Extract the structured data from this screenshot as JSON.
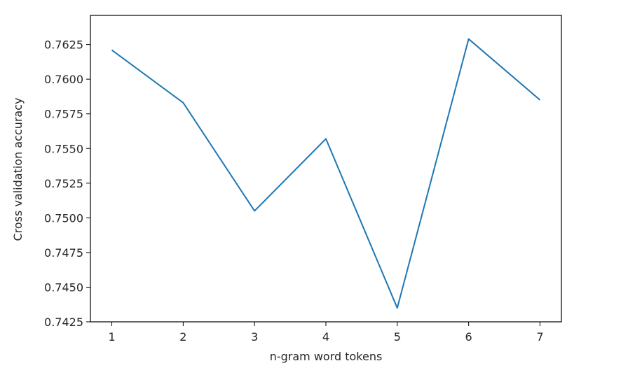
{
  "chart_data": {
    "type": "line",
    "title": "",
    "xlabel": "n-gram word tokens",
    "ylabel": "Cross validation accuracy",
    "x": [
      1,
      2,
      3,
      4,
      5,
      6,
      7
    ],
    "series": [
      {
        "values": [
          0.7621,
          0.7583,
          0.7505,
          0.7557,
          0.7435,
          0.7629,
          0.7585
        ],
        "color": "#1f77b4"
      }
    ],
    "xlim": [
      0.7,
      7.3
    ],
    "ylim": [
      0.7425,
      0.7646
    ],
    "xticks": [
      1,
      2,
      3,
      4,
      5,
      6,
      7
    ],
    "xtick_labels": [
      "1",
      "2",
      "3",
      "4",
      "5",
      "6",
      "7"
    ],
    "yticks": [
      0.7425,
      0.745,
      0.7475,
      0.75,
      0.7525,
      0.755,
      0.7575,
      0.76,
      0.7625
    ],
    "ytick_labels": [
      "0.7425",
      "0.7450",
      "0.7475",
      "0.7500",
      "0.7525",
      "0.7550",
      "0.7575",
      "0.7600",
      "0.7625"
    ],
    "grid": false,
    "legend": "none"
  }
}
